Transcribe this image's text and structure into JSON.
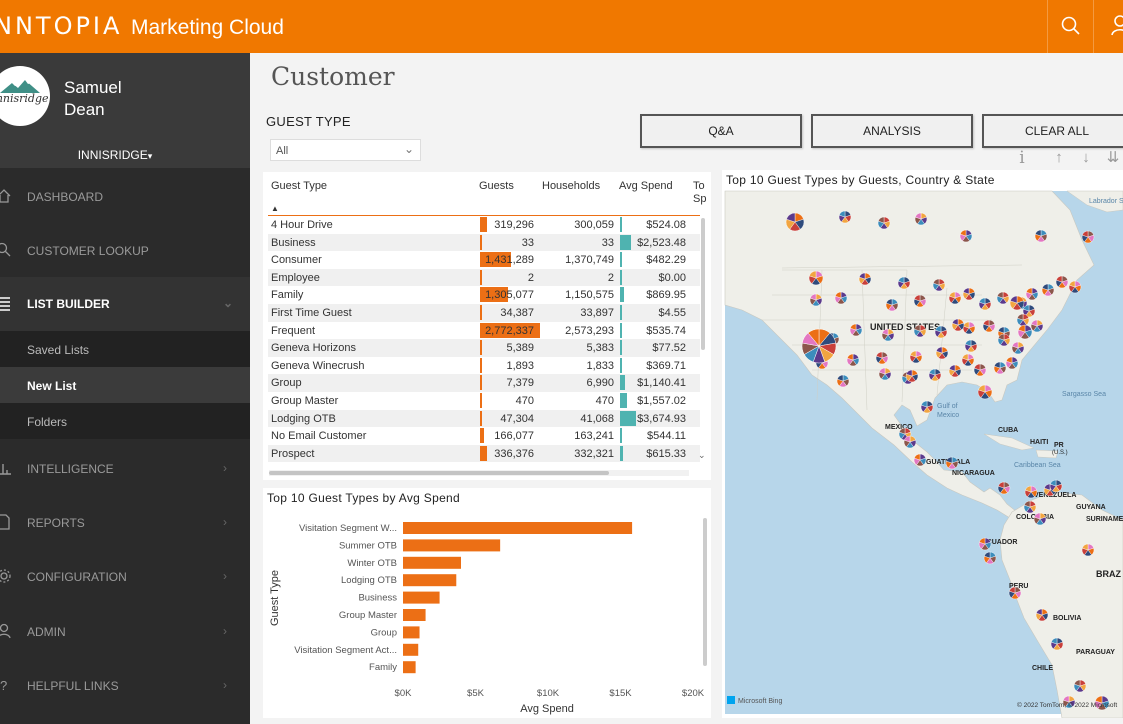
{
  "header": {
    "brand": "NNTOPIA",
    "product": "Marketing Cloud"
  },
  "profile": {
    "logo_text": "Innisridge",
    "first_name": "Samuel",
    "last_name": "Dean",
    "org": "INNISRIDGE"
  },
  "nav": {
    "dashboard": "DASHBOARD",
    "customer_lookup": "CUSTOMER LOOKUP",
    "list_builder": "LIST BUILDER",
    "saved_lists": "Saved Lists",
    "new_list": "New List",
    "folders": "Folders",
    "intelligence": "INTELLIGENCE",
    "reports": "REPORTS",
    "configuration": "CONFIGURATION",
    "admin": "ADMIN",
    "helpful_links": "HELPFUL LINKS"
  },
  "page": {
    "title": "Customer",
    "filter_label": "GUEST TYPE",
    "filter_value": "All",
    "buttons": {
      "qa": "Q&A",
      "analysis": "ANALYSIS",
      "clear_all": "CLEAR ALL"
    },
    "visual_controls": {
      "info": "i",
      "up": "↑",
      "down": "↓",
      "drill": "⇊"
    }
  },
  "table": {
    "headers": {
      "guest_type": "Guest Type",
      "guests": "Guests",
      "households": "Households",
      "avg_spend": "Avg Spend",
      "total_spend": "To Sp"
    },
    "rows": [
      {
        "type": "4 Hour Drive",
        "guests": "319,296",
        "guests_value": 319296,
        "households": "300,059",
        "avg": "$524.08",
        "avg_value": 524.08
      },
      {
        "type": "Business",
        "guests": "33",
        "guests_value": 33,
        "households": "33",
        "avg": "$2,523.48",
        "avg_value": 2523.48
      },
      {
        "type": "Consumer",
        "guests": "1,431,289",
        "guests_value": 1431289,
        "households": "1,370,749",
        "avg": "$482.29",
        "avg_value": 482.29
      },
      {
        "type": "Employee",
        "guests": "2",
        "guests_value": 2,
        "households": "2",
        "avg": "$0.00",
        "avg_value": 0
      },
      {
        "type": "Family",
        "guests": "1,305,077",
        "guests_value": 1305077,
        "households": "1,150,575",
        "avg": "$869.95",
        "avg_value": 869.95
      },
      {
        "type": "First Time Guest",
        "guests": "34,387",
        "guests_value": 34387,
        "households": "33,897",
        "avg": "$4.55",
        "avg_value": 4.55
      },
      {
        "type": "Frequent",
        "guests": "2,772,337",
        "guests_value": 2772337,
        "households": "2,573,293",
        "avg": "$535.74",
        "avg_value": 535.74
      },
      {
        "type": "Geneva Horizons",
        "guests": "5,389",
        "guests_value": 5389,
        "households": "5,383",
        "avg": "$77.52",
        "avg_value": 77.52
      },
      {
        "type": "Geneva Winecrush",
        "guests": "1,893",
        "guests_value": 1893,
        "households": "1,833",
        "avg": "$369.71",
        "avg_value": 369.71
      },
      {
        "type": "Group",
        "guests": "7,379",
        "guests_value": 7379,
        "households": "6,990",
        "avg": "$1,140.41",
        "avg_value": 1140.41
      },
      {
        "type": "Group Master",
        "guests": "470",
        "guests_value": 470,
        "households": "470",
        "avg": "$1,557.02",
        "avg_value": 1557.02
      },
      {
        "type": "Lodging OTB",
        "guests": "47,304",
        "guests_value": 47304,
        "households": "41,068",
        "avg": "$3,674.93",
        "avg_value": 3674.93
      },
      {
        "type": "No Email Customer",
        "guests": "166,077",
        "guests_value": 166077,
        "households": "163,241",
        "avg": "$544.11",
        "avg_value": 544.11
      },
      {
        "type": "Prospect",
        "guests": "336,376",
        "guests_value": 336376,
        "households": "332,321",
        "avg": "$615.33",
        "avg_value": 615.33
      }
    ]
  },
  "chart_data": {
    "type": "bar",
    "title": "Top 10 Guest Types by Avg Spend",
    "xlabel": "Avg Spend",
    "ylabel": "Guest Type",
    "categories": [
      "Visitation Segment W...",
      "Summer OTB",
      "Winter OTB",
      "Lodging OTB",
      "Business",
      "Group Master",
      "Group",
      "Visitation Segment Act...",
      "Family"
    ],
    "values": [
      15800,
      6700,
      4000,
      3675,
      2523,
      1557,
      1140,
      1050,
      870
    ],
    "xlim": [
      0,
      20000
    ],
    "xticks": [
      0,
      5000,
      10000,
      15000,
      20000
    ],
    "xtick_labels": [
      "$0K",
      "$5K",
      "$10K",
      "$15K",
      "$20K"
    ],
    "bar_color": "#ec6f15"
  },
  "map": {
    "title": "Top 10 Guest Types by Guests, Country & State",
    "labels": {
      "us": "UNITED STATES",
      "mexico": "MEXICO",
      "cuba": "CUBA",
      "haiti": "HAITI",
      "pr": "PR",
      "pr_sub": "(U.S.)",
      "guatemala": "GUATEMALA",
      "nicaragua": "NICARAGUA",
      "venezuela": "VENEZUELA",
      "guyana": "GUYANA",
      "suriname": "SURINAME",
      "colombia": "COLOMBIA",
      "ecuador": "ECUADOR",
      "peru": "PERU",
      "brazil": "BRAZ",
      "bolivia": "BOLIVIA",
      "paraguay": "PARAGUAY",
      "chile": "CHILE",
      "gulf": "Gulf of",
      "gulf2": "Mexico",
      "caribbean": "Caribbean Sea",
      "sargasso": "Sargasso Sea",
      "labrador": "Labrador S"
    },
    "bing": "Microsoft Bing",
    "copyright": "© 2022 TomTom, © 2022 Microsoft"
  },
  "colors": {
    "header": "#f07800",
    "sidebar": "#2b2b2b",
    "bar": "#ec6f15",
    "teal": "#4fb3b0",
    "map_water": "#b7d6ea",
    "map_land": "#efefe9"
  }
}
